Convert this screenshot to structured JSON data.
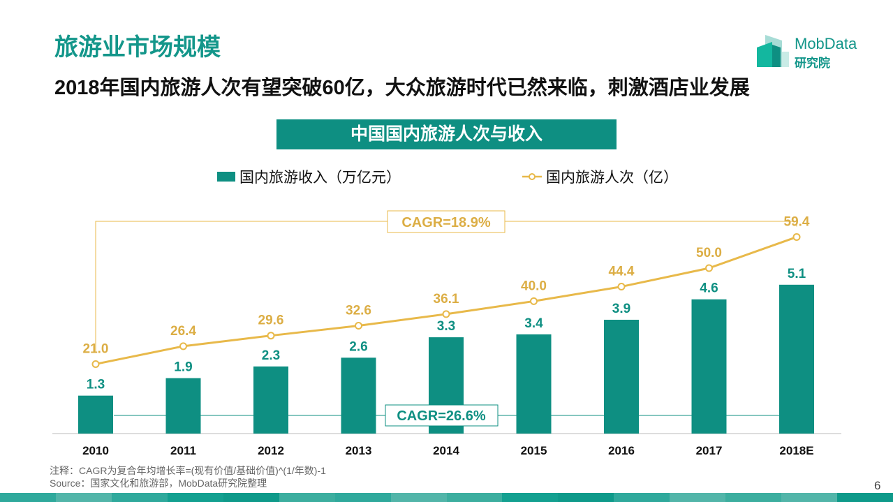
{
  "header": {
    "title": "旅游业市场规模",
    "subtitle": "2018年国内旅游人次有望突破60亿，大众旅游时代已然来临，刺激酒店业发展"
  },
  "logo": {
    "name": "MobData",
    "sub": "研究院"
  },
  "chart_data": {
    "type": "bar+line",
    "title": "中国国内旅游人次与收入",
    "categories": [
      "2010",
      "2011",
      "2012",
      "2013",
      "2014",
      "2015",
      "2016",
      "2017",
      "2018E"
    ],
    "series": [
      {
        "name": "国内旅游收入（万亿元）",
        "type": "bar",
        "color": "#0e8f82",
        "values": [
          1.3,
          1.9,
          2.3,
          2.6,
          3.3,
          3.4,
          3.9,
          4.6,
          5.1
        ],
        "labels": [
          "1.3",
          "1.9",
          "2.3",
          "2.6",
          "3.3",
          "3.4",
          "3.9",
          "4.6",
          "5.1"
        ]
      },
      {
        "name": "国内旅游人次（亿）",
        "type": "line",
        "color": "#e8b94a",
        "values": [
          21.0,
          26.4,
          29.6,
          32.6,
          36.1,
          40.0,
          44.4,
          50.0,
          59.4
        ],
        "labels": [
          "21.0",
          "26.4",
          "29.6",
          "32.6",
          "36.1",
          "40.0",
          "44.4",
          "50.0",
          "59.4"
        ]
      }
    ],
    "annotations": {
      "line_cagr": "CAGR=18.9%",
      "bar_cagr": "CAGR=26.6%"
    },
    "legend": "top"
  },
  "footer": {
    "note": "注释：CAGR为复合年均增长率=(现有价值/基础价值)^(1/年数)-1",
    "source": "Source：国家文化和旅游部，MobData研究院整理",
    "page": "6"
  }
}
